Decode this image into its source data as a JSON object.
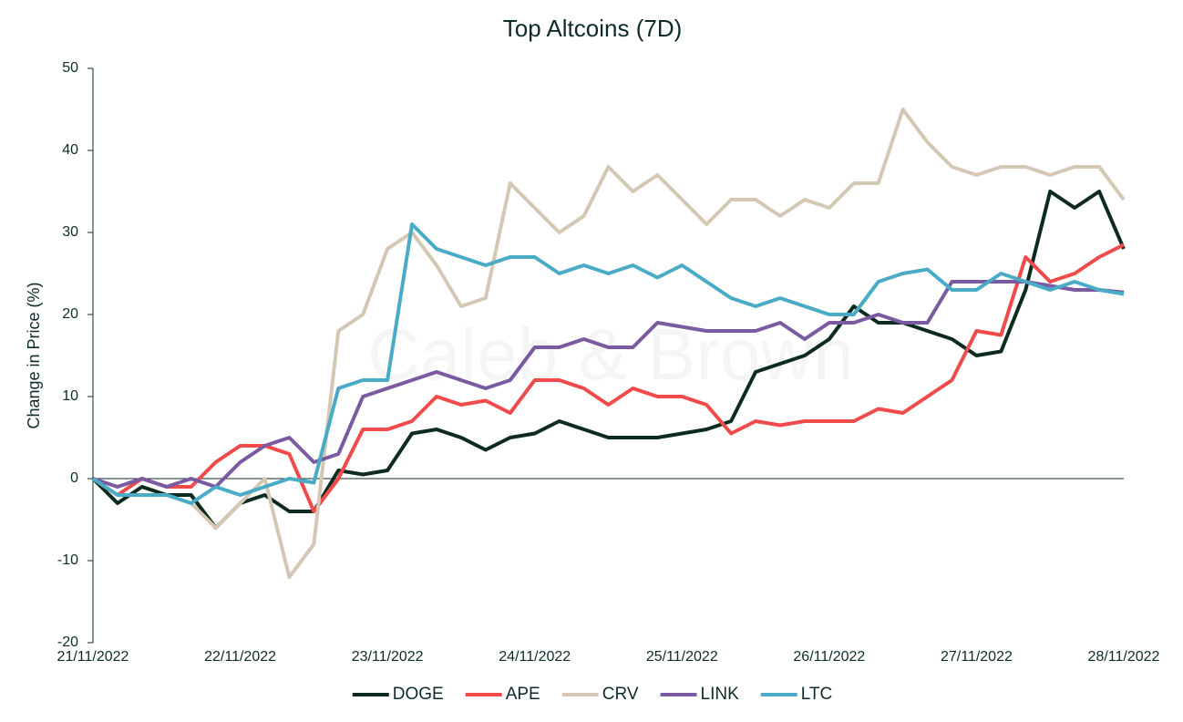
{
  "chart_data": {
    "type": "line",
    "title": "Top Altcoins (7D)",
    "y_label": "Change in Price (%)",
    "watermark": "Caleb & Brown",
    "categories": [
      "21/11/2022",
      null,
      null,
      null,
      null,
      null,
      "22/11/2022",
      null,
      null,
      null,
      null,
      null,
      "23/11/2022",
      null,
      null,
      null,
      null,
      null,
      "24/11/2022",
      null,
      null,
      null,
      null,
      null,
      "25/11/2022",
      null,
      null,
      null,
      null,
      null,
      "26/11/2022",
      null,
      null,
      null,
      null,
      null,
      "27/11/2022",
      null,
      null,
      null,
      null,
      null,
      "28/11/2022"
    ],
    "series": [
      {
        "name": "DOGE",
        "color": "#0d2b1e",
        "values": [
          0,
          -3,
          -1,
          -2,
          -2,
          -6,
          -3,
          -2,
          -4,
          -4,
          1,
          0.5,
          1,
          5.5,
          6,
          5,
          3.5,
          5,
          5.5,
          7,
          6,
          5,
          5,
          5,
          5.5,
          6,
          7,
          13,
          14,
          15,
          17,
          21,
          19,
          19,
          18,
          17,
          15,
          15.5,
          23,
          35,
          33,
          35,
          28
        ]
      },
      {
        "name": "APE",
        "color": "#f04a4a",
        "values": [
          0,
          -2,
          0,
          -1,
          -1,
          2,
          4,
          4,
          3,
          -4,
          0,
          6,
          6,
          7,
          10,
          9,
          9.5,
          8,
          12,
          12,
          11,
          9,
          11,
          10,
          10,
          9,
          5.5,
          7,
          6.5,
          7,
          7,
          7,
          8.5,
          8,
          10,
          12,
          18,
          17.5,
          27,
          24,
          25,
          27,
          28.5
        ]
      },
      {
        "name": "CRV",
        "color": "#d4c8b5",
        "values": [
          0,
          -2,
          -2,
          -2,
          -3,
          -6,
          -3,
          0,
          -12,
          -8,
          18,
          20,
          28,
          30,
          26,
          21,
          22,
          36,
          33,
          30,
          32,
          38,
          35,
          37,
          34,
          31,
          34,
          34,
          32,
          34,
          33,
          36,
          36,
          45,
          41,
          38,
          37,
          38,
          38,
          37,
          38,
          38,
          34
        ]
      },
      {
        "name": "LINK",
        "color": "#7a5aa0",
        "values": [
          0,
          -1,
          0,
          -1,
          0,
          -1,
          2,
          4,
          5,
          2,
          3,
          10,
          11,
          12,
          13,
          12,
          11,
          12,
          16,
          16,
          17,
          16,
          16,
          19,
          18.5,
          18,
          18,
          18,
          19,
          17,
          19,
          19,
          20,
          19,
          19,
          24,
          24,
          24,
          24,
          23.5,
          23,
          23,
          22.7
        ]
      },
      {
        "name": "LTC",
        "color": "#4aabc6",
        "values": [
          0,
          -2,
          -2,
          -2,
          -3,
          -1,
          -2,
          -1,
          0,
          -0.5,
          11,
          12,
          12,
          31,
          28,
          27,
          26,
          27,
          27,
          25,
          26,
          25,
          26,
          24.5,
          26,
          24,
          22,
          21,
          22,
          21,
          20,
          20,
          24,
          25,
          25.5,
          23,
          23,
          25,
          24,
          23,
          24,
          23,
          22.5
        ]
      }
    ],
    "ylim": [
      -20,
      50
    ],
    "yticks": [
      -20,
      -10,
      0,
      10,
      20,
      30,
      40,
      50
    ],
    "legend": "bottom"
  }
}
